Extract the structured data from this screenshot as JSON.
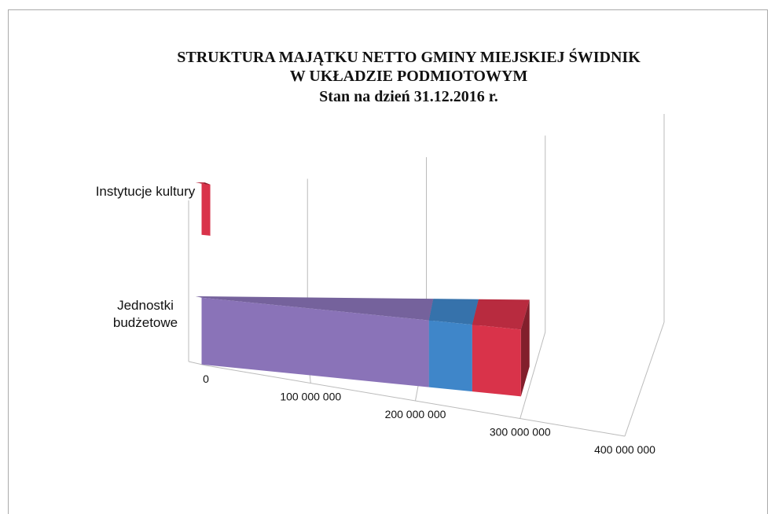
{
  "chart_data": {
    "type": "bar3d_stacked_horizontal",
    "title": "STRUKTURA MAJĄTKU NETTO GMINY MIEJSKIEJ ŚWIDNIK",
    "subtitle": "W UKŁADZIE PODMIOTOWYM",
    "date_line": "Stan na dzień 31.12.2016 r.",
    "categories": [
      "Instytucje kultury",
      "Jednostki budżetowe"
    ],
    "series": [
      {
        "color": "#8a73b8",
        "values": [
          0,
          210000000
        ]
      },
      {
        "color": "#3f86c9",
        "values": [
          0,
          40000000
        ]
      },
      {
        "color": "#d9334a",
        "values": [
          8000000,
          45000000
        ]
      }
    ],
    "xlim": [
      0,
      400000000
    ],
    "xticks": [
      0,
      {
        "value": 100000000,
        "label": "100 000 000"
      },
      {
        "value": 200000000,
        "label": "200 000 000"
      },
      {
        "value": 300000000,
        "label": "300 000 000"
      },
      {
        "value": 400000000,
        "label": "400 000 000"
      }
    ],
    "grid": true
  }
}
